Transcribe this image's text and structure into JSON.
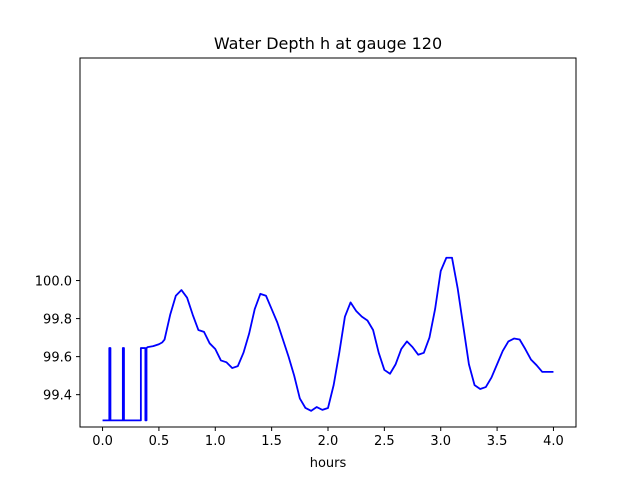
{
  "chart_data": {
    "type": "line",
    "title": "Water Depth h at gauge 120",
    "xlabel": "hours",
    "ylabel": "",
    "xlim": [
      -0.2,
      4.2
    ],
    "ylim": [
      99.23,
      101.17
    ],
    "xticks": [
      0.0,
      0.5,
      1.0,
      1.5,
      2.0,
      2.5,
      3.0,
      3.5,
      4.0
    ],
    "xtick_labels": [
      "0.0",
      "0.5",
      "1.0",
      "1.5",
      "2.0",
      "2.5",
      "3.0",
      "3.5",
      "4.0"
    ],
    "yticks": [
      99.4,
      99.6,
      99.8,
      100.0
    ],
    "ytick_labels": [
      "99.4",
      "99.6",
      "99.8",
      "100.0"
    ],
    "grid": false,
    "series": [
      {
        "color": "#0000ff",
        "x": [
          0.0,
          0.06,
          0.06,
          0.07,
          0.07,
          0.08,
          0.08,
          0.18,
          0.18,
          0.19,
          0.19,
          0.2,
          0.2,
          0.34,
          0.34,
          0.35,
          0.35,
          0.38,
          0.38,
          0.39,
          0.39,
          0.4,
          0.45,
          0.5,
          0.53,
          0.55,
          0.6,
          0.65,
          0.7,
          0.75,
          0.8,
          0.85,
          0.9,
          0.95,
          1.0,
          1.05,
          1.1,
          1.15,
          1.2,
          1.25,
          1.3,
          1.35,
          1.4,
          1.45,
          1.5,
          1.55,
          1.6,
          1.65,
          1.7,
          1.75,
          1.8,
          1.85,
          1.9,
          1.95,
          2.0,
          2.05,
          2.1,
          2.15,
          2.2,
          2.25,
          2.3,
          2.35,
          2.4,
          2.45,
          2.5,
          2.55,
          2.6,
          2.65,
          2.7,
          2.75,
          2.8,
          2.85,
          2.9,
          2.95,
          3.0,
          3.05,
          3.1,
          3.15,
          3.2,
          3.25,
          3.3,
          3.35,
          3.4,
          3.45,
          3.5,
          3.55,
          3.6,
          3.65,
          3.7,
          3.75,
          3.8,
          3.85,
          3.9,
          3.95,
          4.0
        ],
        "y": [
          99.265,
          99.265,
          99.645,
          99.645,
          99.265,
          99.265,
          99.265,
          99.265,
          99.645,
          99.645,
          99.265,
          99.265,
          99.265,
          99.265,
          99.645,
          99.645,
          99.645,
          99.645,
          99.265,
          99.265,
          99.645,
          99.65,
          99.655,
          99.665,
          99.675,
          99.69,
          99.82,
          99.92,
          99.95,
          99.91,
          99.82,
          99.74,
          99.73,
          99.67,
          99.64,
          99.58,
          99.57,
          99.54,
          99.55,
          99.62,
          99.72,
          99.85,
          99.93,
          99.92,
          99.85,
          99.78,
          99.69,
          99.6,
          99.5,
          99.38,
          99.33,
          99.315,
          99.335,
          99.32,
          99.33,
          99.45,
          99.62,
          99.81,
          99.885,
          99.84,
          99.81,
          99.79,
          99.74,
          99.62,
          99.53,
          99.51,
          99.56,
          99.64,
          99.68,
          99.65,
          99.61,
          99.62,
          99.7,
          99.85,
          100.05,
          100.12,
          100.12,
          99.96,
          99.76,
          99.56,
          99.45,
          99.43,
          99.44,
          99.49,
          99.56,
          99.63,
          99.68,
          99.695,
          99.69,
          99.64,
          99.585,
          99.555,
          99.52,
          99.52,
          99.52
        ]
      }
    ]
  }
}
